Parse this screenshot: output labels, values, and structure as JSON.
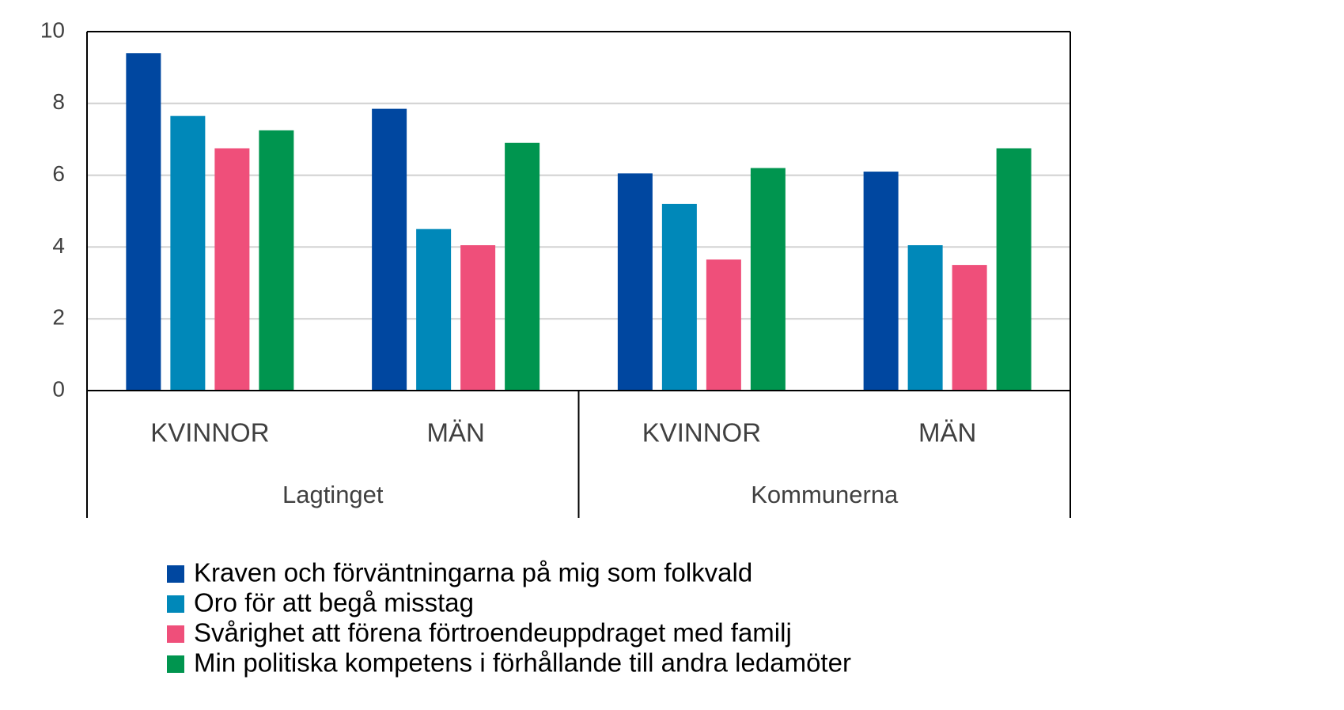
{
  "chart_data": {
    "type": "bar",
    "categories": [
      "KVINNOR",
      "MÄN",
      "KVINNOR",
      "MÄN"
    ],
    "groups": [
      "Lagtinget",
      "Kommunerna"
    ],
    "series": [
      {
        "name": "Kraven och förväntningarna på mig som folkvald",
        "color": "#0047a0",
        "values": [
          9.4,
          7.85,
          6.05,
          6.1
        ]
      },
      {
        "name": "Oro för att begå misstag",
        "color": "#0088b9",
        "values": [
          7.65,
          4.5,
          5.2,
          4.05
        ]
      },
      {
        "name": "Svårighet att förena förtroendeuppdraget med familj",
        "color": "#ef4f7a",
        "values": [
          6.75,
          4.05,
          3.65,
          3.5
        ]
      },
      {
        "name": "Min politiska kompetens i förhållande till andra ledamöter",
        "color": "#00954f",
        "values": [
          7.25,
          6.9,
          6.2,
          6.75
        ]
      }
    ],
    "ylim": [
      0,
      10
    ],
    "yticks": [
      0,
      2,
      4,
      6,
      8,
      10
    ],
    "grid": true,
    "legend": "bottom"
  }
}
